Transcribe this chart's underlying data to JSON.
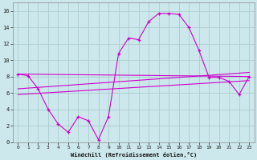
{
  "xlabel": "Windchill (Refroidissement éolien,°C)",
  "bg_color": "#cce8ec",
  "grid_color": "#aacccc",
  "line_color": "#cc00cc",
  "xlim": [
    -0.5,
    23.5
  ],
  "ylim": [
    0,
    17
  ],
  "xtick_vals": [
    0,
    1,
    2,
    3,
    4,
    5,
    6,
    7,
    8,
    9,
    10,
    11,
    12,
    13,
    14,
    15,
    16,
    17,
    18,
    19,
    20,
    21,
    22,
    23
  ],
  "xtick_labels": [
    "0",
    "1",
    "2",
    "3",
    "4",
    "5",
    "6",
    "7",
    "8",
    "9",
    "10",
    "11",
    "12",
    "13",
    "14",
    "15",
    "16",
    "17",
    "18",
    "19",
    "20",
    "21",
    "22",
    "23"
  ],
  "ytick_vals": [
    0,
    2,
    4,
    6,
    8,
    10,
    12,
    14,
    16
  ],
  "ytick_labels": [
    "0",
    "2",
    "4",
    "6",
    "8",
    "10",
    "12",
    "14",
    "16"
  ],
  "line1_x": [
    0,
    1,
    2,
    3,
    4,
    5,
    6,
    7,
    8,
    9,
    10,
    11,
    12,
    13,
    14,
    15,
    16,
    17,
    18,
    19,
    20,
    21,
    22,
    23
  ],
  "line1_y": [
    8.3,
    8.1,
    6.5,
    4.0,
    2.2,
    1.2,
    3.1,
    2.6,
    0.3,
    3.1,
    10.8,
    12.7,
    12.5,
    14.7,
    15.7,
    15.7,
    15.6,
    14.0,
    11.2,
    7.9,
    7.9,
    7.4,
    5.8,
    8.0
  ],
  "line2_x": [
    0,
    23
  ],
  "line2_y": [
    8.3,
    8.0
  ],
  "line3_x": [
    0,
    23
  ],
  "line3_y": [
    6.5,
    8.5
  ],
  "line4_x": [
    0,
    23
  ],
  "line4_y": [
    5.8,
    7.5
  ]
}
